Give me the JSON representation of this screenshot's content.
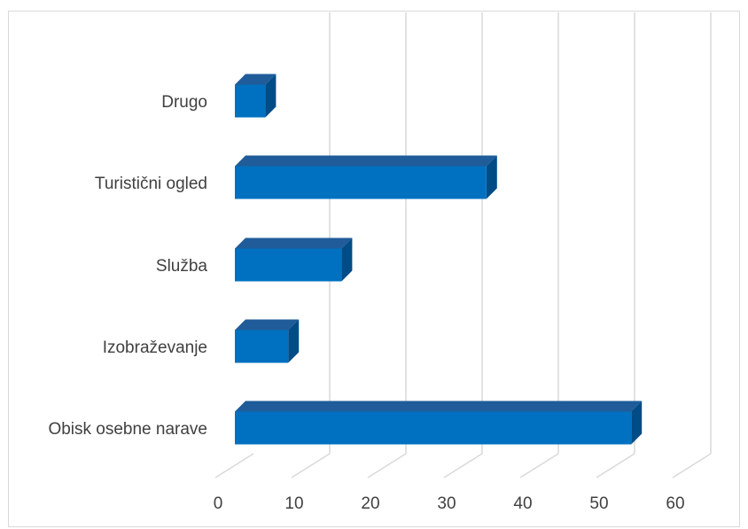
{
  "chart_data": {
    "type": "bar",
    "orientation": "horizontal",
    "style": "3d",
    "categories": [
      "Obisk osebne narave",
      "Izobraževanje",
      "Služba",
      "Turistični ogled",
      "Drugo"
    ],
    "values": [
      52,
      7,
      14,
      33,
      4
    ],
    "xlim": [
      0,
      60
    ],
    "xticks": [
      "0",
      "10",
      "20",
      "30",
      "40",
      "50",
      "60"
    ],
    "grid": true,
    "legend": "none",
    "colors": {
      "bar_front": "#0070c0",
      "bar_top": "#1f5c99",
      "bar_side": "#004c87",
      "grid": "#d9d9d9"
    }
  }
}
